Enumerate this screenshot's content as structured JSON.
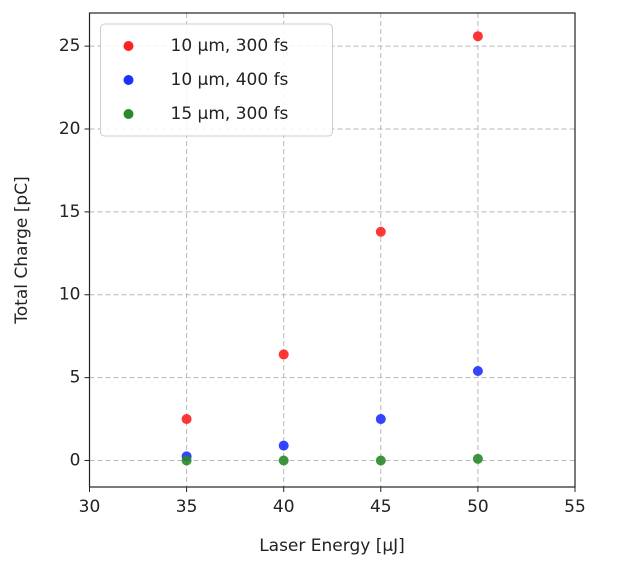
{
  "chart_data": {
    "type": "scatter",
    "x_label": "Laser Energy [μJ]",
    "y_label": "Total Charge [pC]",
    "x": [
      35,
      40,
      45,
      50
    ],
    "series": [
      {
        "name": "10 μm, 300 fs",
        "color": "#ff2020",
        "values": [
          2.5,
          6.4,
          13.8,
          25.6
        ]
      },
      {
        "name": "10 μm, 400 fs",
        "color": "#2030ff",
        "values": [
          0.25,
          0.9,
          2.5,
          5.4
        ]
      },
      {
        "name": "15 μm, 300 fs",
        "color": "#2a8a2a",
        "values": [
          0,
          0,
          0,
          0.1
        ]
      }
    ],
    "xlim": [
      30,
      55
    ],
    "xticks": [
      30,
      35,
      40,
      45,
      50,
      55
    ],
    "ylim": [
      -1.6,
      27
    ],
    "yticks": [
      0,
      5,
      10,
      15,
      20,
      25
    ],
    "grid": true,
    "legend": "upper left"
  }
}
